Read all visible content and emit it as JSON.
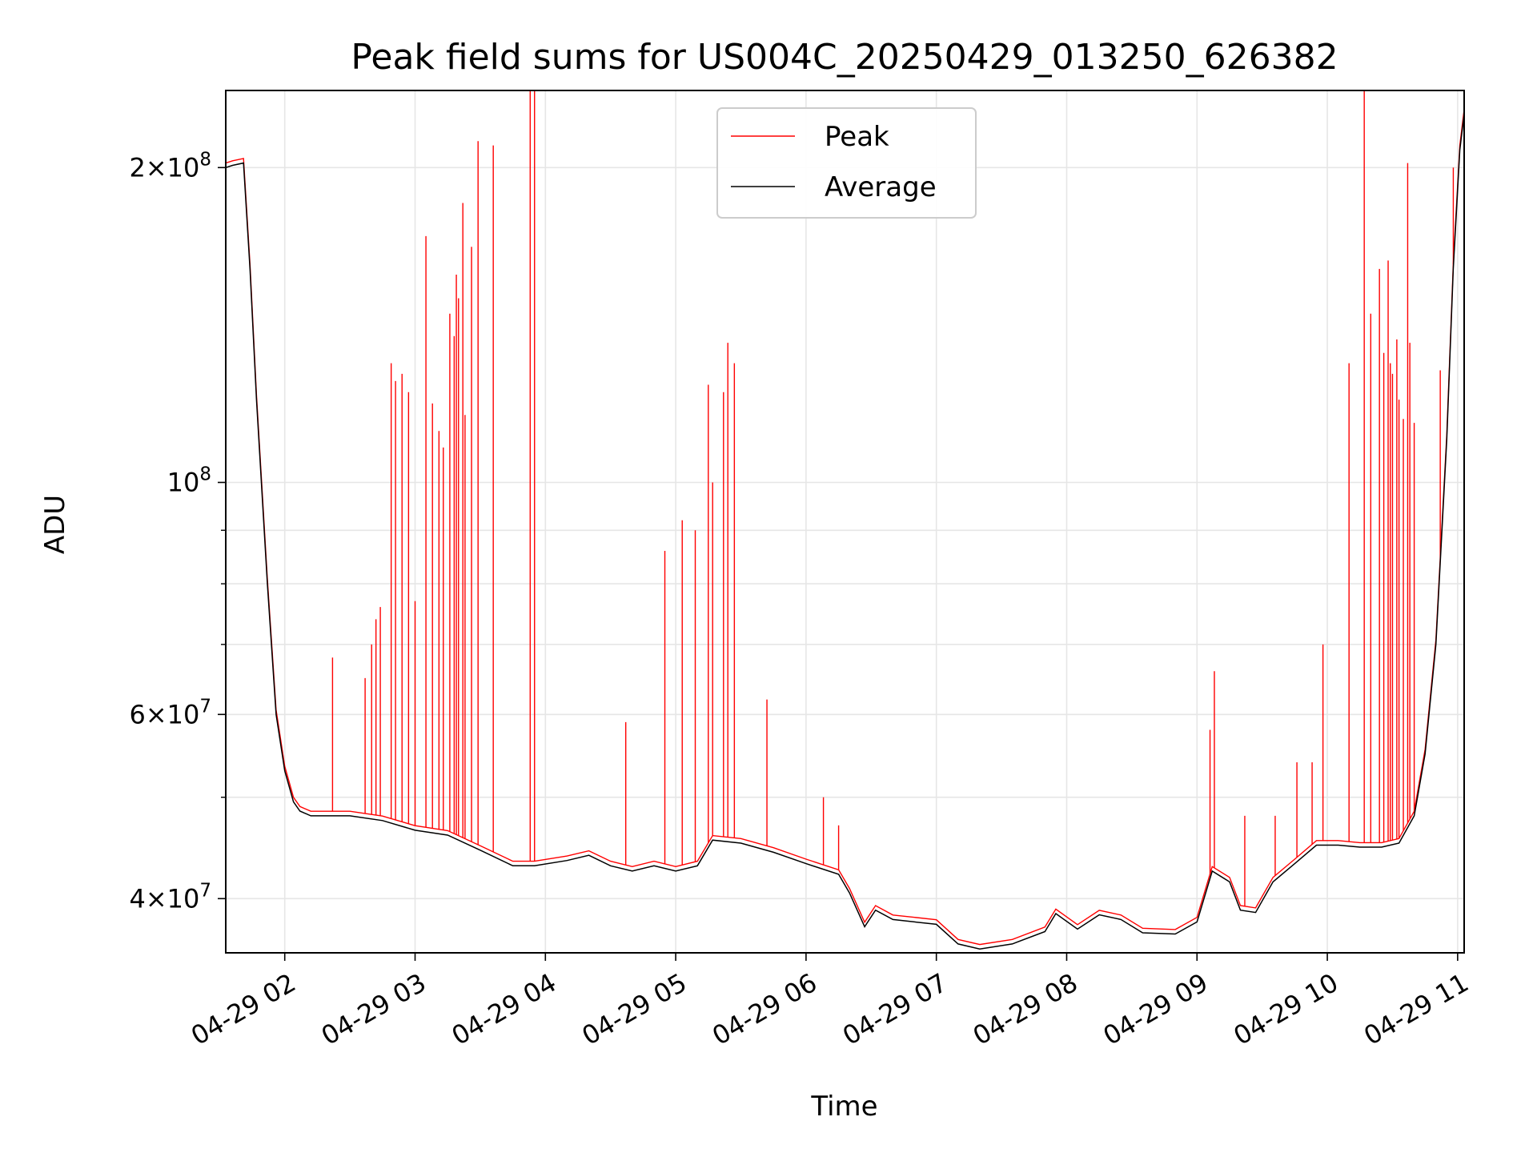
{
  "chart_data": {
    "type": "line",
    "title": "Peak field sums for US004C_20250429_013250_626382",
    "xlabel": "Time",
    "ylabel": "ADU",
    "y_scale": "log",
    "grid": true,
    "legend_position": "top-center",
    "xlim": [
      "2025-04-29 01:32:50",
      "2025-04-29 11:03:00"
    ],
    "ylim": [
      35500000,
      237000000
    ],
    "x_ticks": [
      "2025-04-29 02:00",
      "2025-04-29 03:00",
      "2025-04-29 04:00",
      "2025-04-29 05:00",
      "2025-04-29 06:00",
      "2025-04-29 07:00",
      "2025-04-29 08:00",
      "2025-04-29 09:00",
      "2025-04-29 10:00",
      "2025-04-29 11:00"
    ],
    "x_tick_labels": [
      "04-29 02",
      "04-29 03",
      "04-29 04",
      "04-29 05",
      "04-29 06",
      "04-29 07",
      "04-29 08",
      "04-29 09",
      "04-29 10",
      "04-29 11"
    ],
    "y_ticks": [
      40000000,
      60000000,
      100000000,
      200000000
    ],
    "y_tick_labels": [
      {
        "mantissa": "4",
        "times": "×",
        "base": "10",
        "exp": "7"
      },
      {
        "mantissa": "6",
        "times": "×",
        "base": "10",
        "exp": "7"
      },
      {
        "mantissa": "",
        "times": "",
        "base": "10",
        "exp": "8"
      },
      {
        "mantissa": "2",
        "times": "×",
        "base": "10",
        "exp": "8"
      }
    ],
    "series": [
      {
        "name": "Average",
        "color": "#000000",
        "x": [
          "2025-04-29 01:32:50",
          "2025-04-29 01:36:00",
          "2025-04-29 01:41:00",
          "2025-04-29 01:44:00",
          "2025-04-29 01:47:00",
          "2025-04-29 01:52:00",
          "2025-04-29 01:56:00",
          "2025-04-29 02:00:00",
          "2025-04-29 02:04:00",
          "2025-04-29 02:07:00",
          "2025-04-29 02:12:00",
          "2025-04-29 02:30:00",
          "2025-04-29 02:45:00",
          "2025-04-29 03:00:00",
          "2025-04-29 03:15:00",
          "2025-04-29 03:30:00",
          "2025-04-29 03:45:00",
          "2025-04-29 03:55:00",
          "2025-04-29 04:10:00",
          "2025-04-29 04:20:00",
          "2025-04-29 04:30:00",
          "2025-04-29 04:40:00",
          "2025-04-29 04:50:00",
          "2025-04-29 05:00:00",
          "2025-04-29 05:10:00",
          "2025-04-29 05:17:00",
          "2025-04-29 05:30:00",
          "2025-04-29 05:45:00",
          "2025-04-29 06:00:00",
          "2025-04-29 06:15:00",
          "2025-04-29 06:20:00",
          "2025-04-29 06:27:00",
          "2025-04-29 06:32:00",
          "2025-04-29 06:40:00",
          "2025-04-29 06:50:00",
          "2025-04-29 07:00:00",
          "2025-04-29 07:10:00",
          "2025-04-29 07:20:00",
          "2025-04-29 07:35:00",
          "2025-04-29 07:50:00",
          "2025-04-29 07:55:00",
          "2025-04-29 08:05:00",
          "2025-04-29 08:15:00",
          "2025-04-29 08:25:00",
          "2025-04-29 08:35:00",
          "2025-04-29 08:50:00",
          "2025-04-29 09:00:00",
          "2025-04-29 09:07:00",
          "2025-04-29 09:15:00",
          "2025-04-29 09:20:00",
          "2025-04-29 09:27:00",
          "2025-04-29 09:35:00",
          "2025-04-29 09:45:00",
          "2025-04-29 09:55:00",
          "2025-04-29 10:05:00",
          "2025-04-29 10:15:00",
          "2025-04-29 10:25:00",
          "2025-04-29 10:33:00",
          "2025-04-29 10:40:00",
          "2025-04-29 10:45:00",
          "2025-04-29 10:50:00",
          "2025-04-29 10:55:00",
          "2025-04-29 10:58:00",
          "2025-04-29 11:01:00",
          "2025-04-29 11:03:00"
        ],
        "values": [
          200000000,
          201000000,
          202000000,
          160000000,
          120000000,
          80000000,
          60000000,
          53000000,
          49500000,
          48500000,
          48000000,
          48000000,
          47500000,
          46500000,
          46000000,
          44500000,
          43000000,
          43000000,
          43500000,
          44000000,
          43000000,
          42500000,
          43000000,
          42500000,
          43000000,
          45500000,
          45200000,
          44300000,
          43200000,
          42200000,
          40500000,
          37600000,
          39000000,
          38200000,
          38000000,
          37800000,
          36200000,
          35800000,
          36200000,
          37200000,
          38700000,
          37400000,
          38600000,
          38200000,
          37100000,
          37000000,
          38000000,
          42500000,
          41500000,
          39000000,
          38800000,
          41500000,
          43200000,
          45000000,
          45000000,
          44800000,
          44800000,
          45200000,
          48000000,
          55000000,
          70000000,
          110000000,
          160000000,
          208000000,
          225000000
        ]
      },
      {
        "name": "Peak",
        "color": "#ff0000",
        "x": [
          "2025-04-29 02:22:00",
          "2025-04-29 02:37:00",
          "2025-04-29 02:40:00",
          "2025-04-29 02:42:00",
          "2025-04-29 02:44:00",
          "2025-04-29 02:49:00",
          "2025-04-29 02:51:00",
          "2025-04-29 02:54:00",
          "2025-04-29 02:57:00",
          "2025-04-29 03:00:00",
          "2025-04-29 03:05:00",
          "2025-04-29 03:08:00",
          "2025-04-29 03:11:00",
          "2025-04-29 03:13:00",
          "2025-04-29 03:16:00",
          "2025-04-29 03:18:00",
          "2025-04-29 03:19:00",
          "2025-04-29 03:20:00",
          "2025-04-29 03:22:00",
          "2025-04-29 03:23:00",
          "2025-04-29 03:26:00",
          "2025-04-29 03:29:00",
          "2025-04-29 03:36:00",
          "2025-04-29 03:53:00",
          "2025-04-29 03:55:00",
          "2025-04-29 04:37:00",
          "2025-04-29 04:55:00",
          "2025-04-29 05:03:00",
          "2025-04-29 05:09:00",
          "2025-04-29 05:15:00",
          "2025-04-29 05:17:00",
          "2025-04-29 05:22:00",
          "2025-04-29 05:24:00",
          "2025-04-29 05:27:00",
          "2025-04-29 05:42:00",
          "2025-04-29 06:08:00",
          "2025-04-29 06:15:00",
          "2025-04-29 09:06:00",
          "2025-04-29 09:08:00",
          "2025-04-29 09:22:00",
          "2025-04-29 09:36:00",
          "2025-04-29 09:46:00",
          "2025-04-29 09:53:00",
          "2025-04-29 09:58:00",
          "2025-04-29 10:10:00",
          "2025-04-29 10:17:00",
          "2025-04-29 10:20:00",
          "2025-04-29 10:24:00",
          "2025-04-29 10:26:00",
          "2025-04-29 10:28:00",
          "2025-04-29 10:29:00",
          "2025-04-29 10:30:00",
          "2025-04-29 10:32:00",
          "2025-04-29 10:33:00",
          "2025-04-29 10:35:00",
          "2025-04-29 10:37:00",
          "2025-04-29 10:38:00",
          "2025-04-29 10:40:00",
          "2025-04-29 10:52:00",
          "2025-04-29 10:58:00"
        ],
        "values": [
          68000000,
          65000000,
          70000000,
          74000000,
          76000000,
          130000000,
          125000000,
          127000000,
          122000000,
          77000000,
          172000000,
          119000000,
          112000000,
          108000000,
          145000000,
          138000000,
          158000000,
          150000000,
          185000000,
          116000000,
          168000000,
          212000000,
          210000000,
          237000000,
          237000000,
          59000000,
          86000000,
          92000000,
          90000000,
          124000000,
          100000000,
          122000000,
          136000000,
          130000000,
          62000000,
          50000000,
          47000000,
          58000000,
          66000000,
          48000000,
          48000000,
          54000000,
          54000000,
          70000000,
          130000000,
          237000000,
          145000000,
          160000000,
          133000000,
          163000000,
          130000000,
          127000000,
          137000000,
          120000000,
          115000000,
          202000000,
          136000000,
          114000000,
          128000000,
          200000000
        ]
      }
    ]
  }
}
